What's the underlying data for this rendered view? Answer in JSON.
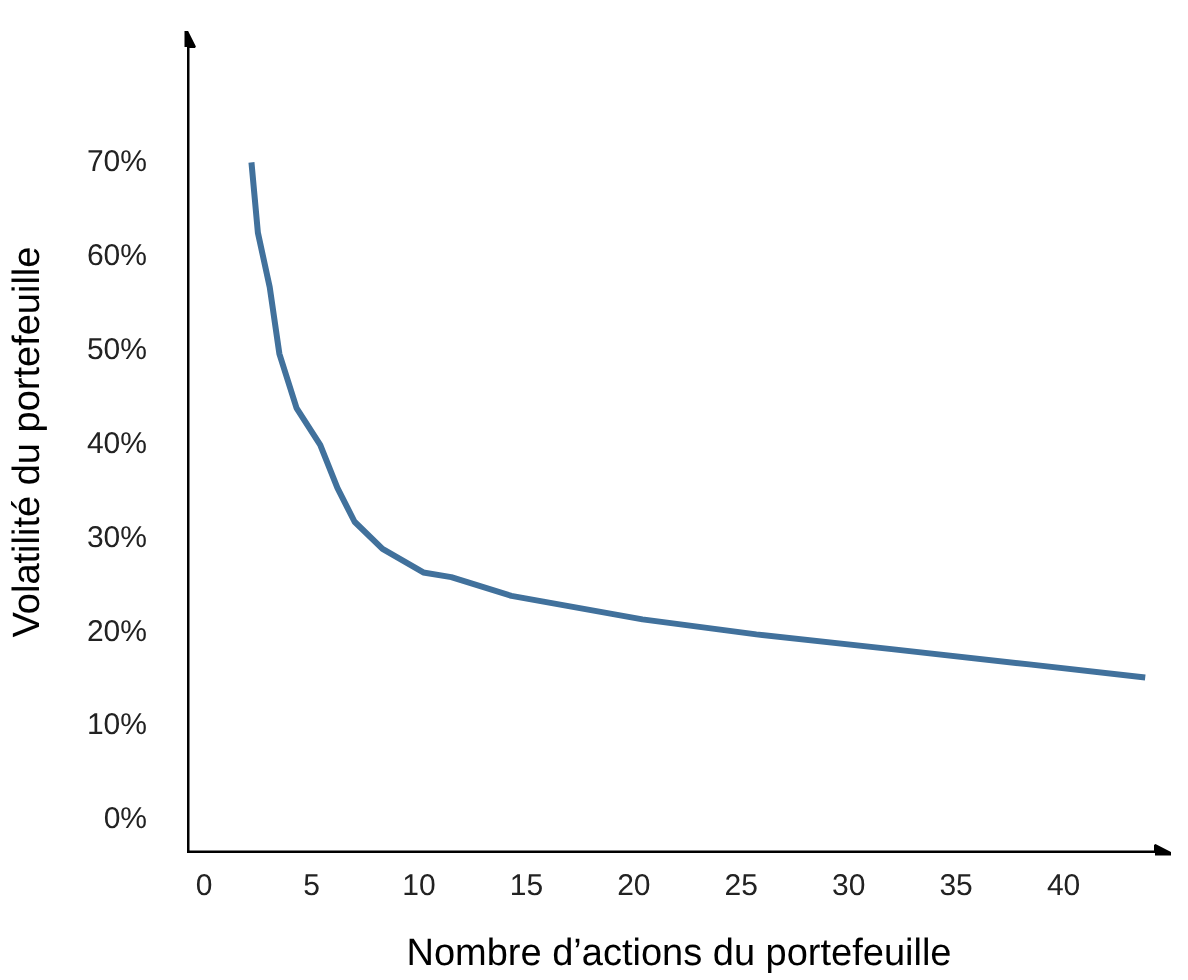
{
  "chart_data": {
    "type": "line",
    "xlabel": "Nombre d’actions du portefeuille",
    "ylabel": "Volatilité du portefeuille",
    "xlim": [
      -0.8,
      45
    ],
    "ylim": [
      -3.6,
      84
    ],
    "xticks": [
      0,
      5,
      10,
      15,
      20,
      25,
      30,
      35,
      40
    ],
    "yticks": [
      {
        "value": 0,
        "label": "0%"
      },
      {
        "value": 10,
        "label": "10%"
      },
      {
        "value": 20,
        "label": "20%"
      },
      {
        "value": 30,
        "label": "30%"
      },
      {
        "value": 40,
        "label": "40%"
      },
      {
        "value": 50,
        "label": "50%"
      },
      {
        "value": 60,
        "label": "60%"
      },
      {
        "value": 70,
        "label": "70%"
      }
    ],
    "series": [
      {
        "color": "#41719c",
        "x": [
          2.2,
          2.5,
          3.05,
          3.5,
          4.3,
          5.4,
          6.2,
          7.0,
          8.3,
          10.2,
          11.5,
          14.3,
          20.4,
          25.7,
          32.1,
          38.4,
          43.8
        ],
        "values": [
          70,
          62.5,
          56.7,
          49.6,
          43.8,
          39.9,
          35.3,
          31.7,
          28.8,
          26.3,
          25.8,
          23.8,
          21.3,
          19.7,
          18.1,
          16.5,
          15.1
        ]
      }
    ]
  }
}
